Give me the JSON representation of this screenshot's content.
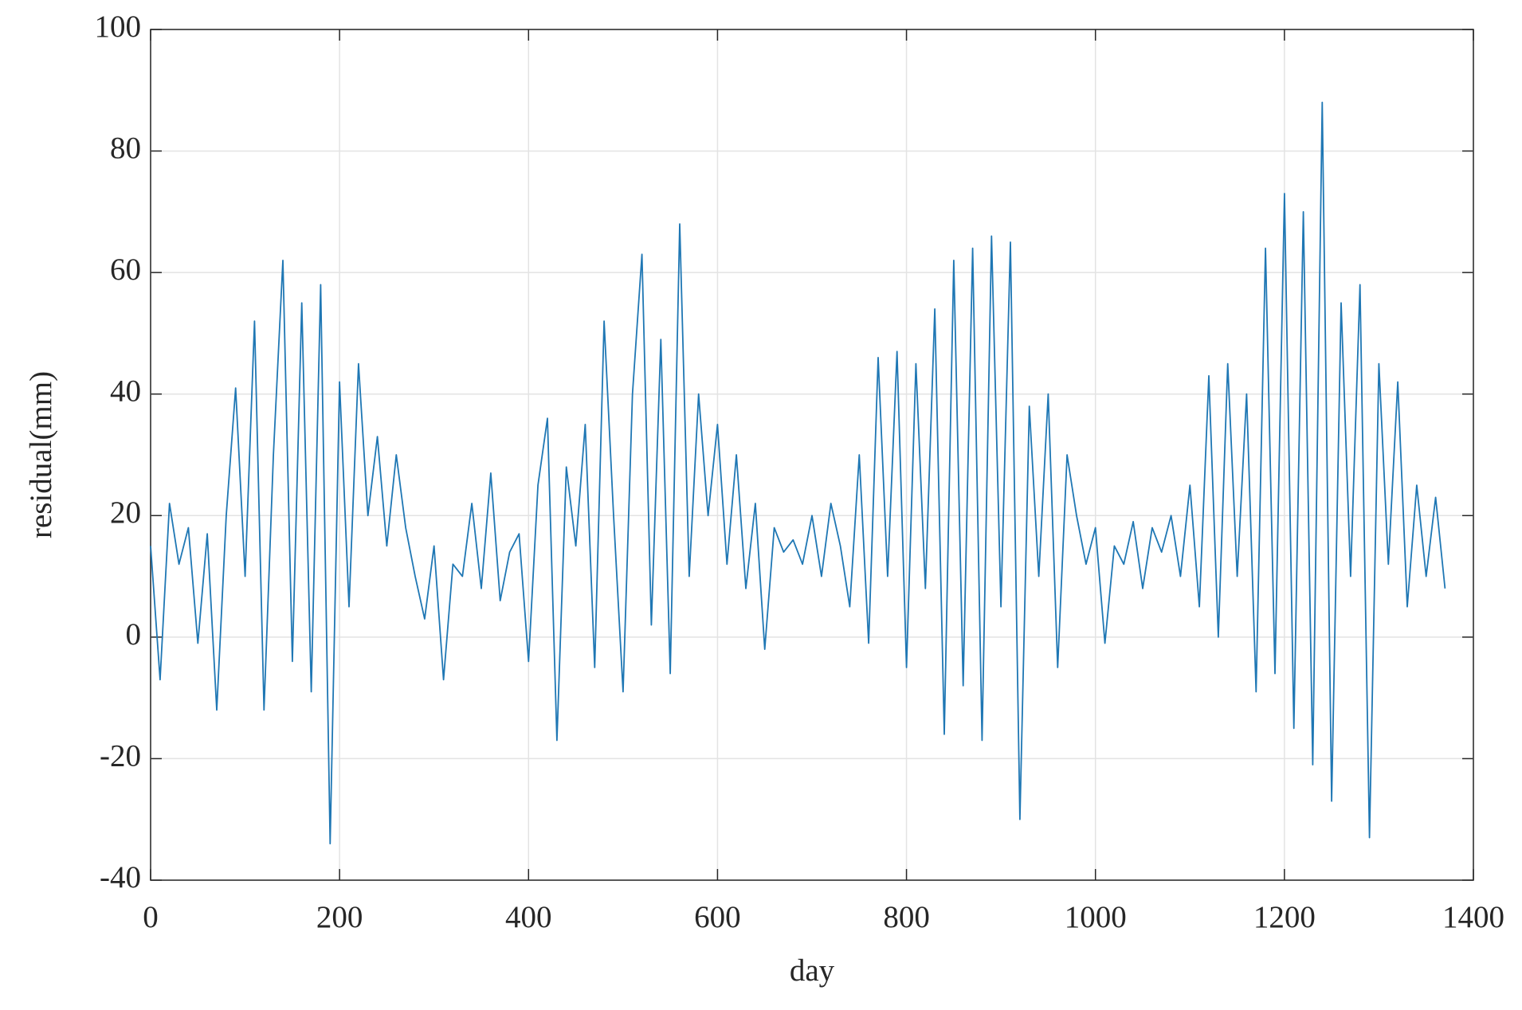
{
  "chart_data": {
    "type": "line",
    "xlabel": "day",
    "ylabel": "residual(mm)",
    "x": [
      0,
      10,
      20,
      30,
      40,
      50,
      60,
      70,
      80,
      90,
      100,
      110,
      120,
      130,
      140,
      150,
      160,
      170,
      180,
      190,
      200,
      210,
      220,
      230,
      240,
      250,
      260,
      270,
      280,
      290,
      300,
      310,
      320,
      330,
      340,
      350,
      360,
      370,
      380,
      390,
      400,
      410,
      420,
      430,
      440,
      450,
      460,
      470,
      480,
      490,
      500,
      510,
      520,
      530,
      540,
      550,
      560,
      570,
      580,
      590,
      600,
      610,
      620,
      630,
      640,
      650,
      660,
      670,
      680,
      690,
      700,
      710,
      720,
      730,
      740,
      750,
      760,
      770,
      780,
      790,
      800,
      810,
      820,
      830,
      840,
      850,
      860,
      870,
      880,
      890,
      900,
      910,
      920,
      930,
      940,
      950,
      960,
      970,
      980,
      990,
      1000,
      1010,
      1020,
      1030,
      1040,
      1050,
      1060,
      1070,
      1080,
      1090,
      1100,
      1110,
      1120,
      1130,
      1140,
      1150,
      1160,
      1170,
      1180,
      1190,
      1200,
      1210,
      1220,
      1230,
      1240,
      1250,
      1260,
      1270,
      1280,
      1290,
      1300,
      1310,
      1320,
      1330,
      1340,
      1350,
      1360,
      1370
    ],
    "series": [
      {
        "name": "residual",
        "color": "#1f77b4",
        "values": [
          15,
          -7,
          22,
          12,
          18,
          -1,
          17,
          -12,
          20,
          41,
          10,
          52,
          -12,
          30,
          62,
          -4,
          55,
          -9,
          58,
          -34,
          42,
          5,
          45,
          20,
          33,
          15,
          30,
          18,
          10,
          3,
          15,
          -7,
          12,
          10,
          22,
          8,
          27,
          6,
          14,
          17,
          -4,
          25,
          36,
          -17,
          28,
          15,
          35,
          -5,
          52,
          20,
          -9,
          40,
          63,
          2,
          49,
          -6,
          68,
          10,
          40,
          20,
          35,
          12,
          30,
          8,
          22,
          -2,
          18,
          14,
          16,
          12,
          20,
          10,
          22,
          15,
          5,
          30,
          -1,
          46,
          10,
          47,
          -5,
          45,
          8,
          54,
          -16,
          62,
          -8,
          64,
          -17,
          66,
          5,
          65,
          -30,
          38,
          10,
          40,
          -5,
          30,
          20,
          12,
          18,
          -1,
          15,
          12,
          19,
          8,
          18,
          14,
          20,
          10,
          25,
          5,
          43,
          0,
          45,
          10,
          40,
          -9,
          64,
          -6,
          73,
          -15,
          70,
          -21,
          88,
          -27,
          55,
          10,
          58,
          -33,
          45,
          12,
          42,
          5,
          25,
          10,
          23,
          8
        ]
      }
    ],
    "xlim": [
      0,
      1400
    ],
    "xticks": [
      0,
      200,
      400,
      600,
      800,
      1000,
      1200,
      1400
    ],
    "ylim": [
      -40,
      100
    ],
    "yticks": [
      -40,
      -20,
      0,
      20,
      40,
      60,
      80,
      100
    ],
    "grid": true
  }
}
